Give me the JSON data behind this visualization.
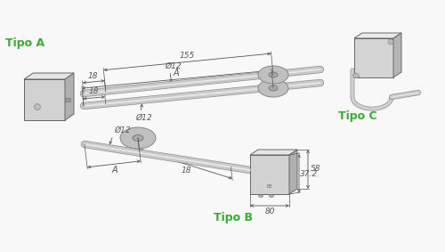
{
  "bg": "#f8f8f8",
  "gc": "#3aaa35",
  "dc": "#555555",
  "gface": "#d8d8d8",
  "gside": "#a8a8a8",
  "gtop": "#e8e8e8",
  "grod": "#c8c8c8",
  "gedge": "#909090",
  "gflange": "#c0c0c0",
  "tipo_a": "Tipo A",
  "tipo_b": "Tipo B",
  "tipo_c": "Tipo C",
  "d12": "Ø12",
  "v18": "18",
  "v155": "155",
  "vA": "A",
  "v372": "37.2",
  "v58": "58",
  "v80": "80"
}
